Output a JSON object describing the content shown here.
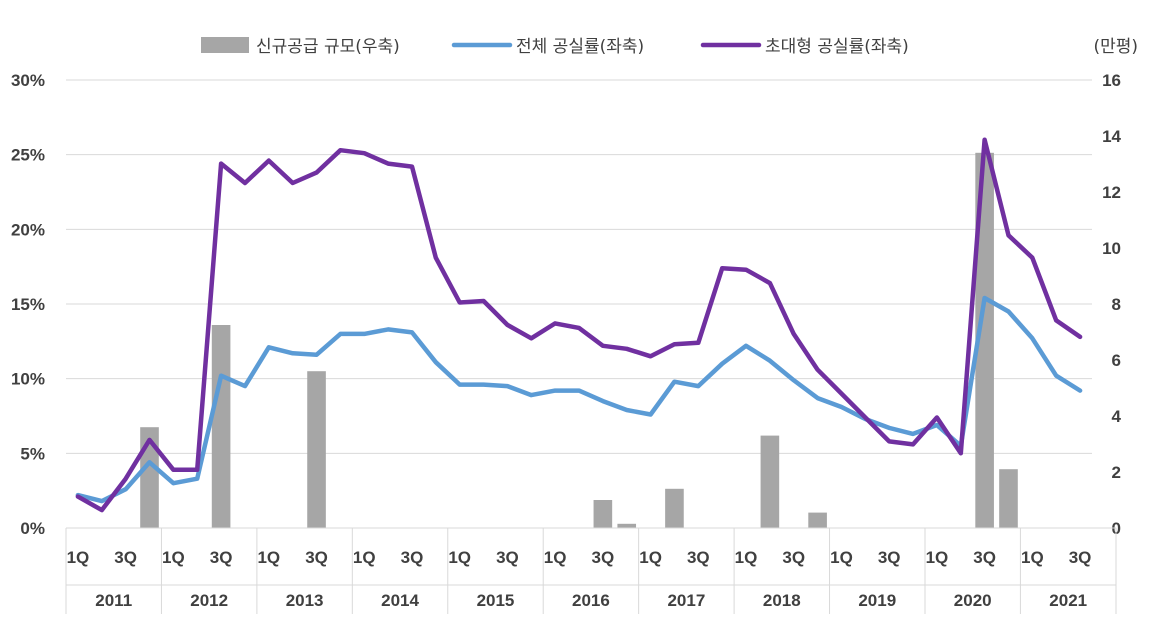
{
  "chart_data": {
    "type": "bar+line",
    "title": "",
    "y_left": {
      "ticks": [
        "0%",
        "5%",
        "10%",
        "15%",
        "20%",
        "25%",
        "30%"
      ],
      "range": [
        0,
        30
      ],
      "unit_label": ""
    },
    "y_right": {
      "ticks": [
        "0",
        "2",
        "4",
        "6",
        "8",
        "10",
        "12",
        "14",
        "16"
      ],
      "range": [
        0,
        16
      ],
      "unit_label": "(만평)"
    },
    "quarter_labels": [
      "1Q",
      "3Q"
    ],
    "years": [
      "2011",
      "2012",
      "2013",
      "2014",
      "2015",
      "2016",
      "2017",
      "2018",
      "2019",
      "2020",
      "2021"
    ],
    "x_count": 43,
    "legend": [
      {
        "name": "신규공급 규모(우축)",
        "kind": "bar",
        "color": "#a6a6a6"
      },
      {
        "name": "전체 공실률(좌축)",
        "kind": "line",
        "color": "#5b9bd5"
      },
      {
        "name": "초대형 공실률(좌축)",
        "kind": "line",
        "color": "#7030a0"
      }
    ],
    "series": [
      {
        "name": "신규공급 규모(우축)",
        "axis": "right",
        "values": [
          0,
          0,
          0,
          3.6,
          0,
          0,
          7.25,
          0,
          0,
          0,
          5.6,
          0,
          0,
          0,
          0,
          0,
          0,
          0,
          0,
          0,
          0,
          0,
          1.0,
          0.15,
          0,
          1.4,
          0,
          0,
          0,
          3.3,
          0,
          0.55,
          0,
          0,
          0,
          0,
          0,
          0,
          13.4,
          2.1,
          0,
          0,
          0
        ]
      },
      {
        "name": "전체 공실률(좌축)",
        "axis": "left",
        "values": [
          2.2,
          1.8,
          2.6,
          4.4,
          3.0,
          3.3,
          10.2,
          9.5,
          12.1,
          11.7,
          11.6,
          13.0,
          13.0,
          13.3,
          13.1,
          11.1,
          9.6,
          9.6,
          9.5,
          8.9,
          9.2,
          9.2,
          8.5,
          7.9,
          7.6,
          9.8,
          9.5,
          11.0,
          12.2,
          11.2,
          9.9,
          8.7,
          8.1,
          7.3,
          6.7,
          6.3,
          6.9,
          5.5,
          15.4,
          14.5,
          12.7,
          10.2,
          9.2
        ]
      },
      {
        "name": "초대형 공실률(좌축)",
        "axis": "left",
        "values": [
          2.1,
          1.2,
          3.3,
          5.9,
          3.9,
          3.9,
          24.4,
          23.1,
          24.6,
          23.1,
          23.8,
          25.3,
          25.1,
          24.4,
          24.2,
          18.1,
          15.1,
          15.2,
          13.6,
          12.7,
          13.7,
          13.4,
          12.2,
          12.0,
          11.5,
          12.3,
          12.4,
          17.4,
          17.3,
          16.4,
          13.0,
          10.6,
          9.0,
          7.4,
          5.8,
          5.6,
          7.4,
          5.0,
          26.0,
          19.6,
          18.1,
          13.9,
          12.8
        ]
      }
    ]
  }
}
